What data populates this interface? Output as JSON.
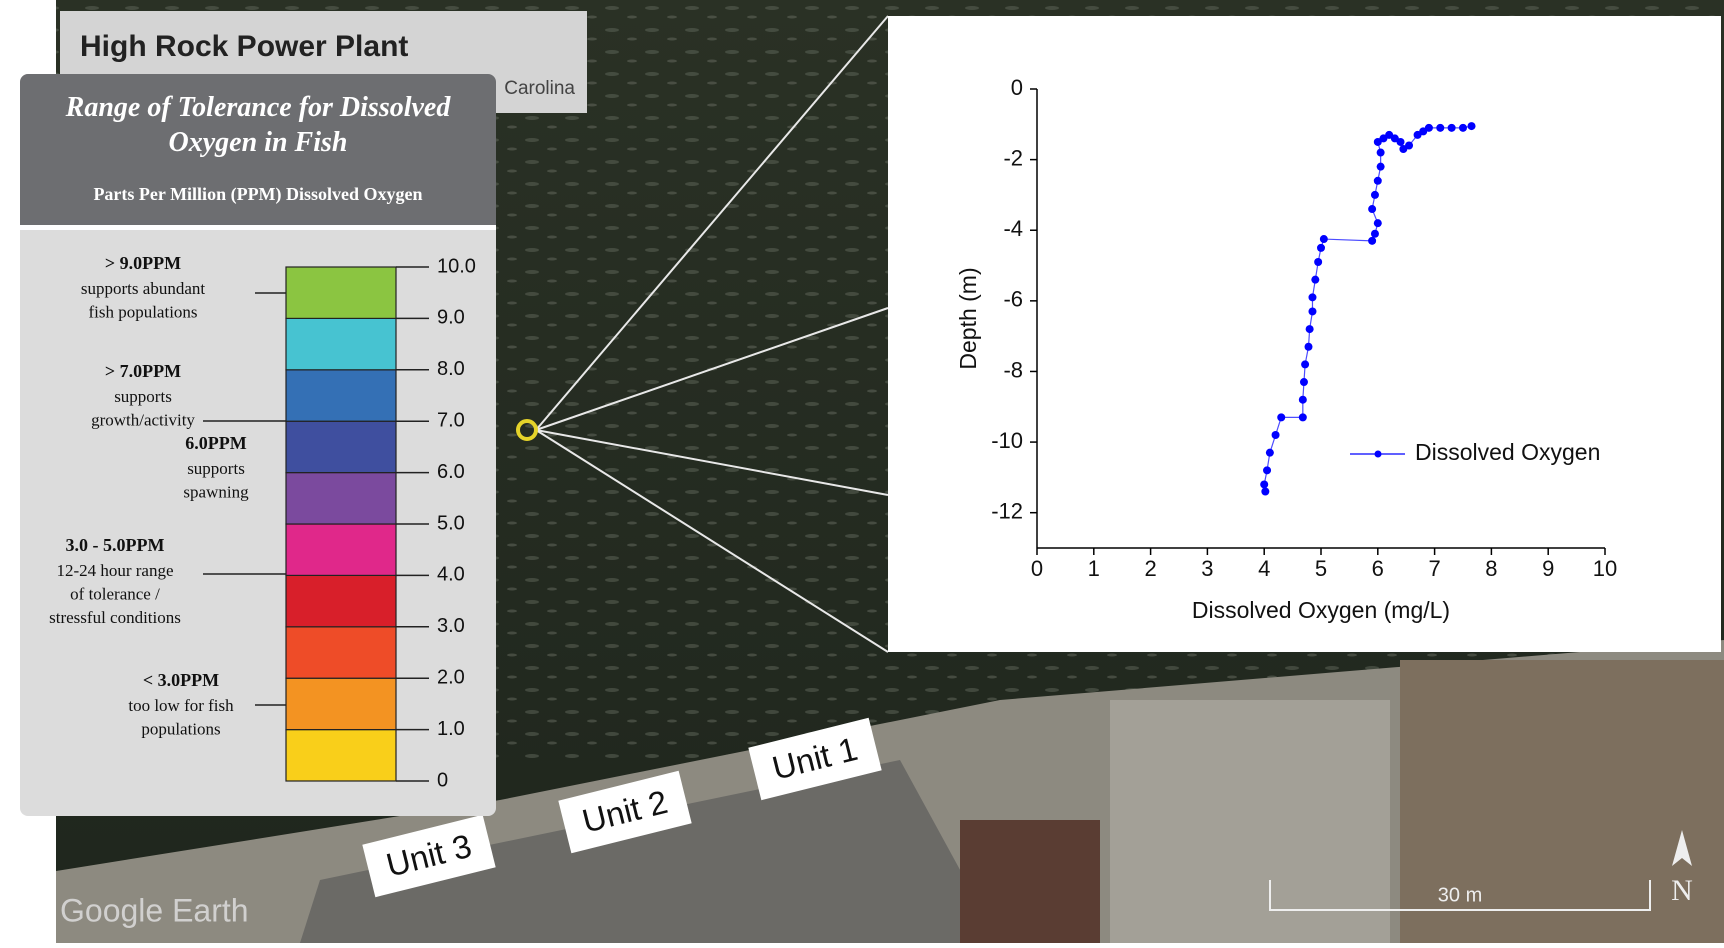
{
  "map": {
    "title": "High Rock Power Plant",
    "subtitle": "Carolina",
    "units": [
      "Unit 1",
      "Unit 2",
      "Unit 3"
    ],
    "scale_label": "30 m",
    "north": "N",
    "watermark": "Google Earth"
  },
  "chart_data": [
    {
      "type": "stacked-bar",
      "title": "Range of Tolerance for Dissolved Oxygen in Fish",
      "subtitle": "Parts Per Million (PPM) Dissolved Oxygen",
      "values": [
        1,
        1,
        1,
        1,
        1,
        1,
        1,
        1,
        1,
        1
      ],
      "colors": [
        "#f9cf1a",
        "#f39322",
        "#ee4c28",
        "#d81f2a",
        "#e0288a",
        "#7b4a9e",
        "#3f4f9f",
        "#3470b5",
        "#47c3d1",
        "#8bc541"
      ],
      "ylim": [
        0,
        10
      ],
      "yticks": [
        0,
        {
          "value": 1,
          "label": "1.0"
        },
        {
          "value": 2,
          "label": "2.0"
        },
        {
          "value": 3,
          "label": "3.0"
        },
        {
          "value": 4,
          "label": "4.0"
        },
        {
          "value": 5,
          "label": "5.0"
        },
        {
          "value": 6,
          "label": "6.0"
        },
        {
          "value": 7,
          "label": "7.0"
        },
        {
          "value": 8,
          "label": "8.0"
        },
        {
          "value": 9,
          "label": "9.0"
        },
        {
          "value": 10,
          "label": "10.0"
        }
      ],
      "annotations": [
        {
          "heading": "> 9.0PPM",
          "lines": [
            "supports abundant",
            "fish populations"
          ]
        },
        {
          "heading": "> 7.0PPM",
          "lines": [
            "supports",
            "growth/activity"
          ]
        },
        {
          "heading": "6.0PPM",
          "lines": [
            "supports",
            "spawning"
          ]
        },
        {
          "heading": "3.0 - 5.0PPM",
          "lines": [
            "12-24 hour range",
            "of tolerance /",
            "stressful conditions"
          ]
        },
        {
          "heading": "< 3.0PPM",
          "lines": [
            "too low for fish",
            "populations"
          ]
        }
      ]
    },
    {
      "type": "line",
      "x_label": "Dissolved Oxygen (mg/L)",
      "y_label": "Depth (m)",
      "x": [
        7.65,
        7.5,
        7.3,
        7.1,
        6.9,
        6.8,
        6.7,
        6.55,
        6.45,
        6.4,
        6.3,
        6.2,
        6.1,
        6.0,
        6.05,
        6.05,
        6.0,
        5.95,
        5.9,
        6.0,
        5.95,
        5.9,
        5.05,
        5.0,
        4.95,
        4.9,
        4.85,
        4.85,
        4.8,
        4.78,
        4.72,
        4.7,
        4.68,
        4.68,
        4.3,
        4.2,
        4.1,
        4.05,
        4.0,
        4.02
      ],
      "series": [
        {
          "name": "Dissolved Oxygen",
          "color": "#0000ff",
          "values": [
            -1.05,
            -1.1,
            -1.1,
            -1.1,
            -1.1,
            -1.2,
            -1.3,
            -1.6,
            -1.7,
            -1.5,
            -1.4,
            -1.3,
            -1.4,
            -1.5,
            -1.8,
            -2.2,
            -2.6,
            -3.0,
            -3.4,
            -3.8,
            -4.1,
            -4.3,
            -4.25,
            -4.5,
            -4.9,
            -5.4,
            -5.9,
            -6.3,
            -6.8,
            -7.3,
            -7.8,
            -8.3,
            -8.8,
            -9.3,
            -9.3,
            -9.8,
            -10.3,
            -10.8,
            -11.2,
            -11.4
          ]
        }
      ],
      "xlim": [
        0,
        10
      ],
      "xticks": [
        0,
        1,
        2,
        3,
        4,
        5,
        6,
        7,
        8,
        9,
        10
      ],
      "ylim": [
        -13,
        0
      ],
      "yticks": [
        0,
        -2,
        -4,
        -6,
        -8,
        -10,
        -12
      ],
      "legend": "right"
    }
  ]
}
